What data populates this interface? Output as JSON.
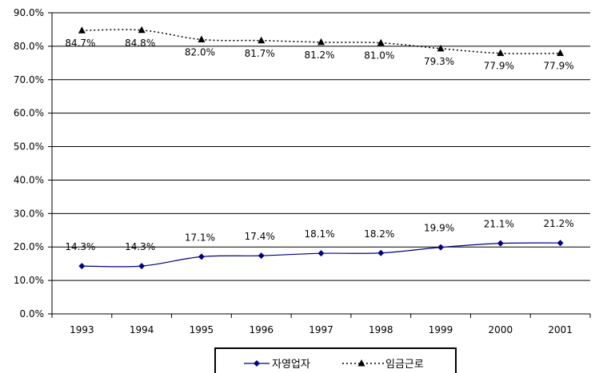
{
  "chart_data": {
    "type": "line",
    "categories": [
      "1993",
      "1994",
      "1995",
      "1996",
      "1997",
      "1998",
      "1999",
      "2000",
      "2001"
    ],
    "ylim": [
      0,
      90
    ],
    "y_ticks": [
      "0.0%",
      "10.0%",
      "20.0%",
      "30.0%",
      "40.0%",
      "50.0%",
      "60.0%",
      "70.0%",
      "80.0%",
      "90.0%"
    ],
    "grid": true,
    "legend_position": "bottom",
    "series": [
      {
        "name": "자영업자",
        "values": [
          14.3,
          14.3,
          17.1,
          17.4,
          18.1,
          18.2,
          19.9,
          21.1,
          21.2
        ],
        "labels": [
          "14.3%",
          "14.3%",
          "17.1%",
          "17.4%",
          "18.1%",
          "18.2%",
          "19.9%",
          "21.1%",
          "21.2%"
        ],
        "color": "#000080",
        "marker": "diamond",
        "line_style": "solid"
      },
      {
        "name": "임금근로",
        "values": [
          84.7,
          84.8,
          82.0,
          81.7,
          81.2,
          81.0,
          79.3,
          77.9,
          77.9
        ],
        "labels": [
          "84.7%",
          "84.8%",
          "82.0%",
          "81.7%",
          "81.2%",
          "81.0%",
          "79.3%",
          "77.9%",
          "77.9%"
        ],
        "color": "#000000",
        "marker": "triangle",
        "line_style": "dotted"
      }
    ]
  }
}
